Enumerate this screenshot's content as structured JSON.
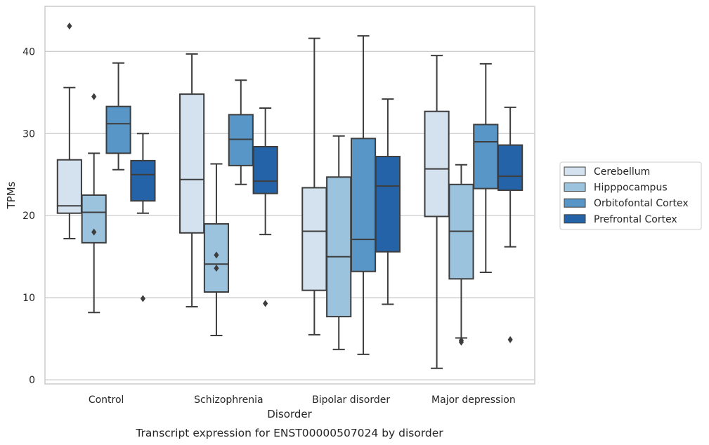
{
  "caption": "Transcript expression for ENST00000507024 by disorder",
  "chart_data": {
    "type": "box",
    "xlabel": "Disorder",
    "ylabel": "TPMs",
    "ylim": [
      -0.5,
      45.5
    ],
    "yticks": [
      0,
      10,
      20,
      30,
      40
    ],
    "grid": "horizontal",
    "legend_position": "right",
    "categories": [
      "Control",
      "Schizophrenia",
      "Bipolar disorder",
      "Major depression"
    ],
    "series": [
      {
        "name": "Cerebellum",
        "color": "#d4e2f0",
        "boxes": [
          {
            "whisker_low": 17.2,
            "q1": 20.3,
            "median": 21.2,
            "q3": 26.8,
            "whisker_high": 35.6,
            "outliers": [
              43.1
            ]
          },
          {
            "whisker_low": 8.9,
            "q1": 17.9,
            "median": 24.4,
            "q3": 34.8,
            "whisker_high": 39.7,
            "outliers": []
          },
          {
            "whisker_low": 5.5,
            "q1": 10.9,
            "median": 18.1,
            "q3": 23.4,
            "whisker_high": 41.6,
            "outliers": []
          },
          {
            "whisker_low": 1.4,
            "q1": 19.9,
            "median": 25.7,
            "q3": 32.7,
            "whisker_high": 39.5,
            "outliers": []
          }
        ]
      },
      {
        "name": "Hipppocampus",
        "color": "#9bc3de",
        "boxes": [
          {
            "whisker_low": 8.2,
            "q1": 16.7,
            "median": 20.4,
            "q3": 22.5,
            "whisker_high": 27.6,
            "outliers": [
              34.5,
              18.0
            ]
          },
          {
            "whisker_low": 5.4,
            "q1": 10.7,
            "median": 14.1,
            "q3": 19.0,
            "whisker_high": 26.3,
            "outliers": [
              15.2,
              13.6
            ]
          },
          {
            "whisker_low": 3.7,
            "q1": 7.7,
            "median": 15.0,
            "q3": 24.7,
            "whisker_high": 29.7,
            "outliers": []
          },
          {
            "whisker_low": 5.1,
            "q1": 12.3,
            "median": 18.1,
            "q3": 23.8,
            "whisker_high": 26.2,
            "outliers": [
              4.8,
              4.6
            ]
          }
        ]
      },
      {
        "name": "Orbitofontal Cortex",
        "color": "#5796c6",
        "boxes": [
          {
            "whisker_low": 25.6,
            "q1": 27.6,
            "median": 31.2,
            "q3": 33.3,
            "whisker_high": 38.6,
            "outliers": []
          },
          {
            "whisker_low": 23.8,
            "q1": 26.1,
            "median": 29.3,
            "q3": 32.3,
            "whisker_high": 36.5,
            "outliers": []
          },
          {
            "whisker_low": 3.1,
            "q1": 13.2,
            "median": 17.1,
            "q3": 29.4,
            "whisker_high": 41.9,
            "outliers": []
          },
          {
            "whisker_low": 13.1,
            "q1": 23.3,
            "median": 29.0,
            "q3": 31.1,
            "whisker_high": 38.5,
            "outliers": []
          }
        ]
      },
      {
        "name": "Prefrontal Cortex",
        "color": "#2563a9",
        "boxes": [
          {
            "whisker_low": 20.3,
            "q1": 21.8,
            "median": 25.0,
            "q3": 26.7,
            "whisker_high": 30.0,
            "outliers": [
              9.9
            ]
          },
          {
            "whisker_low": 17.7,
            "q1": 22.7,
            "median": 24.2,
            "q3": 28.4,
            "whisker_high": 33.1,
            "outliers": [
              9.3
            ]
          },
          {
            "whisker_low": 9.2,
            "q1": 15.6,
            "median": 23.6,
            "q3": 27.2,
            "whisker_high": 34.2,
            "outliers": []
          },
          {
            "whisker_low": 16.2,
            "q1": 23.1,
            "median": 24.8,
            "q3": 28.6,
            "whisker_high": 33.2,
            "outliers": [
              4.9
            ]
          }
        ]
      }
    ]
  }
}
